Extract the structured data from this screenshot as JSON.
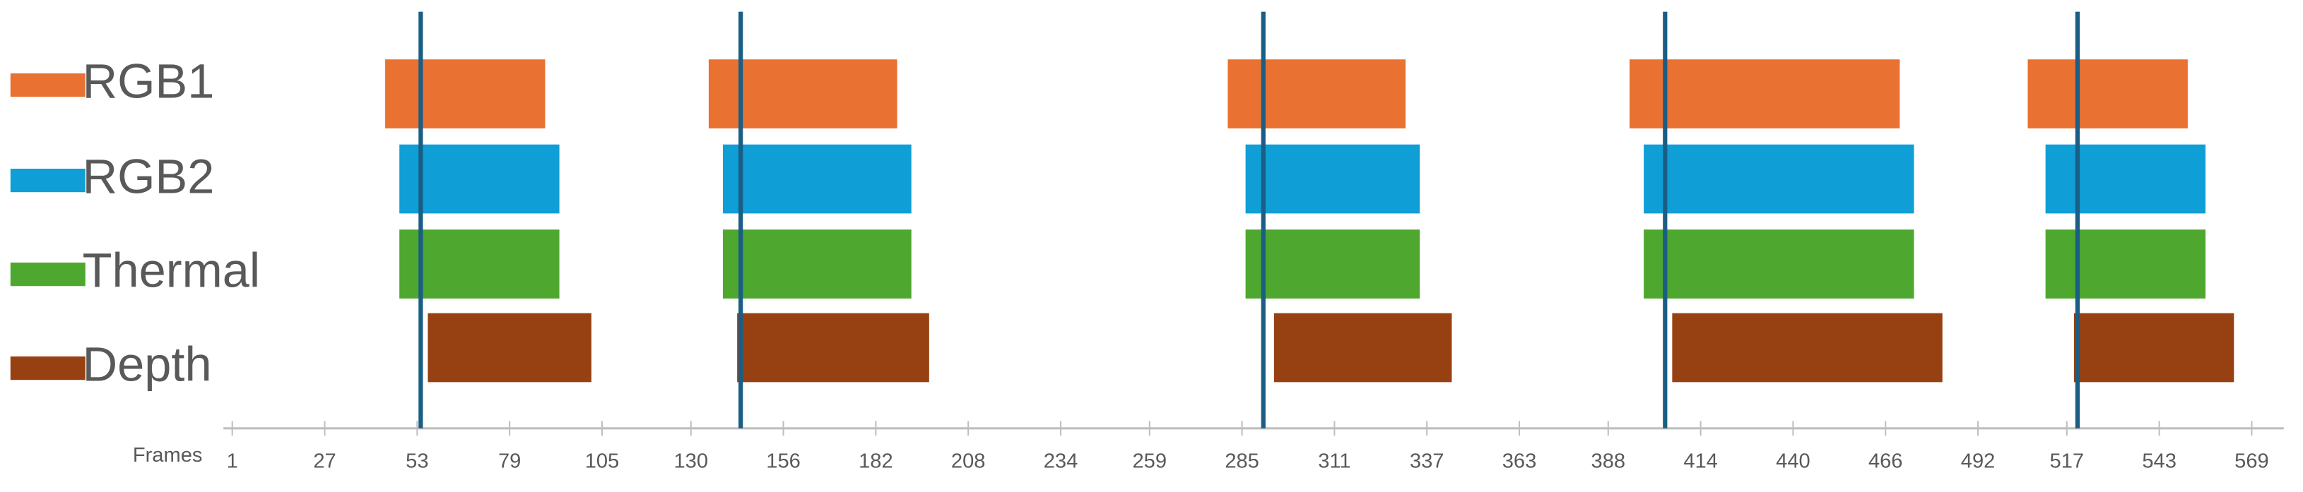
{
  "chart_data": {
    "type": "timeline",
    "x_label": "Frames",
    "xlim": [
      -1.5,
      578
    ],
    "xticks": [
      1,
      27,
      53,
      79,
      105,
      130,
      156,
      182,
      208,
      234,
      259,
      285,
      311,
      337,
      363,
      388,
      414,
      440,
      466,
      492,
      517,
      543,
      569
    ],
    "markers": [
      54,
      144,
      291,
      404,
      520
    ],
    "marker_color": "#1a5e85",
    "series": [
      {
        "name": "RGB1",
        "color": "#e97132",
        "values": [
          [
            44,
            89
          ],
          [
            135,
            188
          ],
          [
            281,
            331
          ],
          [
            394,
            470
          ],
          [
            506,
            551
          ]
        ]
      },
      {
        "name": "RGB2",
        "color": "#0f9ed5",
        "values": [
          [
            48,
            93
          ],
          [
            139,
            192
          ],
          [
            286,
            335
          ],
          [
            398,
            474
          ],
          [
            511,
            556
          ]
        ]
      },
      {
        "name": "Thermal",
        "color": "#4ea72e",
        "values": [
          [
            48,
            93
          ],
          [
            139,
            192
          ],
          [
            286,
            335
          ],
          [
            398,
            474
          ],
          [
            511,
            556
          ]
        ]
      },
      {
        "name": "Depth",
        "color": "#974012",
        "values": [
          [
            56,
            102
          ],
          [
            143,
            197
          ],
          [
            294,
            344
          ],
          [
            406,
            482
          ],
          [
            519,
            564
          ]
        ]
      }
    ]
  }
}
